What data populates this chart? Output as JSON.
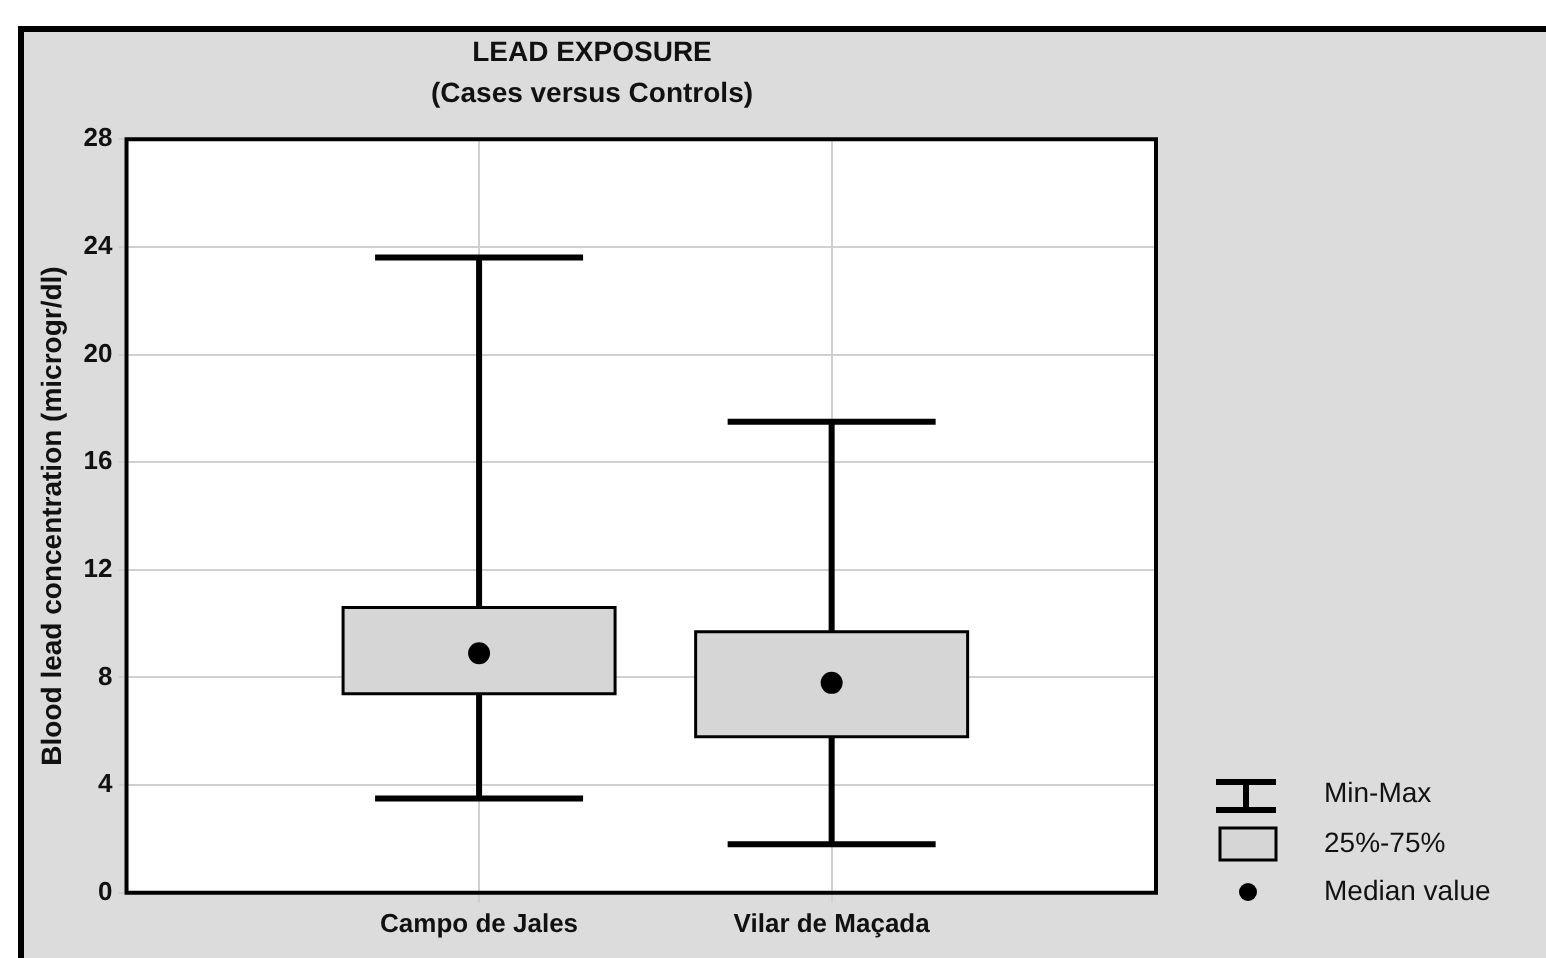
{
  "chart_data": {
    "type": "box",
    "title": "LEAD EXPOSURE",
    "subtitle": "(Cases versus Controls)",
    "ylabel": "Blood lead concentration (microgr/dl)",
    "categories": [
      "Campo de Jales",
      "Vilar de Maçada"
    ],
    "series": [
      {
        "color": "#d6d6d6",
        "boxes": [
          {
            "low": 3.5,
            "q1": 7.4,
            "median": 8.9,
            "q3": 10.6,
            "high": 23.6
          },
          {
            "low": 1.8,
            "q1": 5.8,
            "median": 7.8,
            "q3": 9.7,
            "high": 17.5
          }
        ]
      }
    ],
    "ylim": [
      0,
      28
    ],
    "yticks": [
      0,
      4,
      8,
      12,
      16,
      20,
      24,
      28
    ],
    "grid": true,
    "annotations": [
      "Min-Max",
      "25%-75%",
      "Median value"
    ]
  }
}
